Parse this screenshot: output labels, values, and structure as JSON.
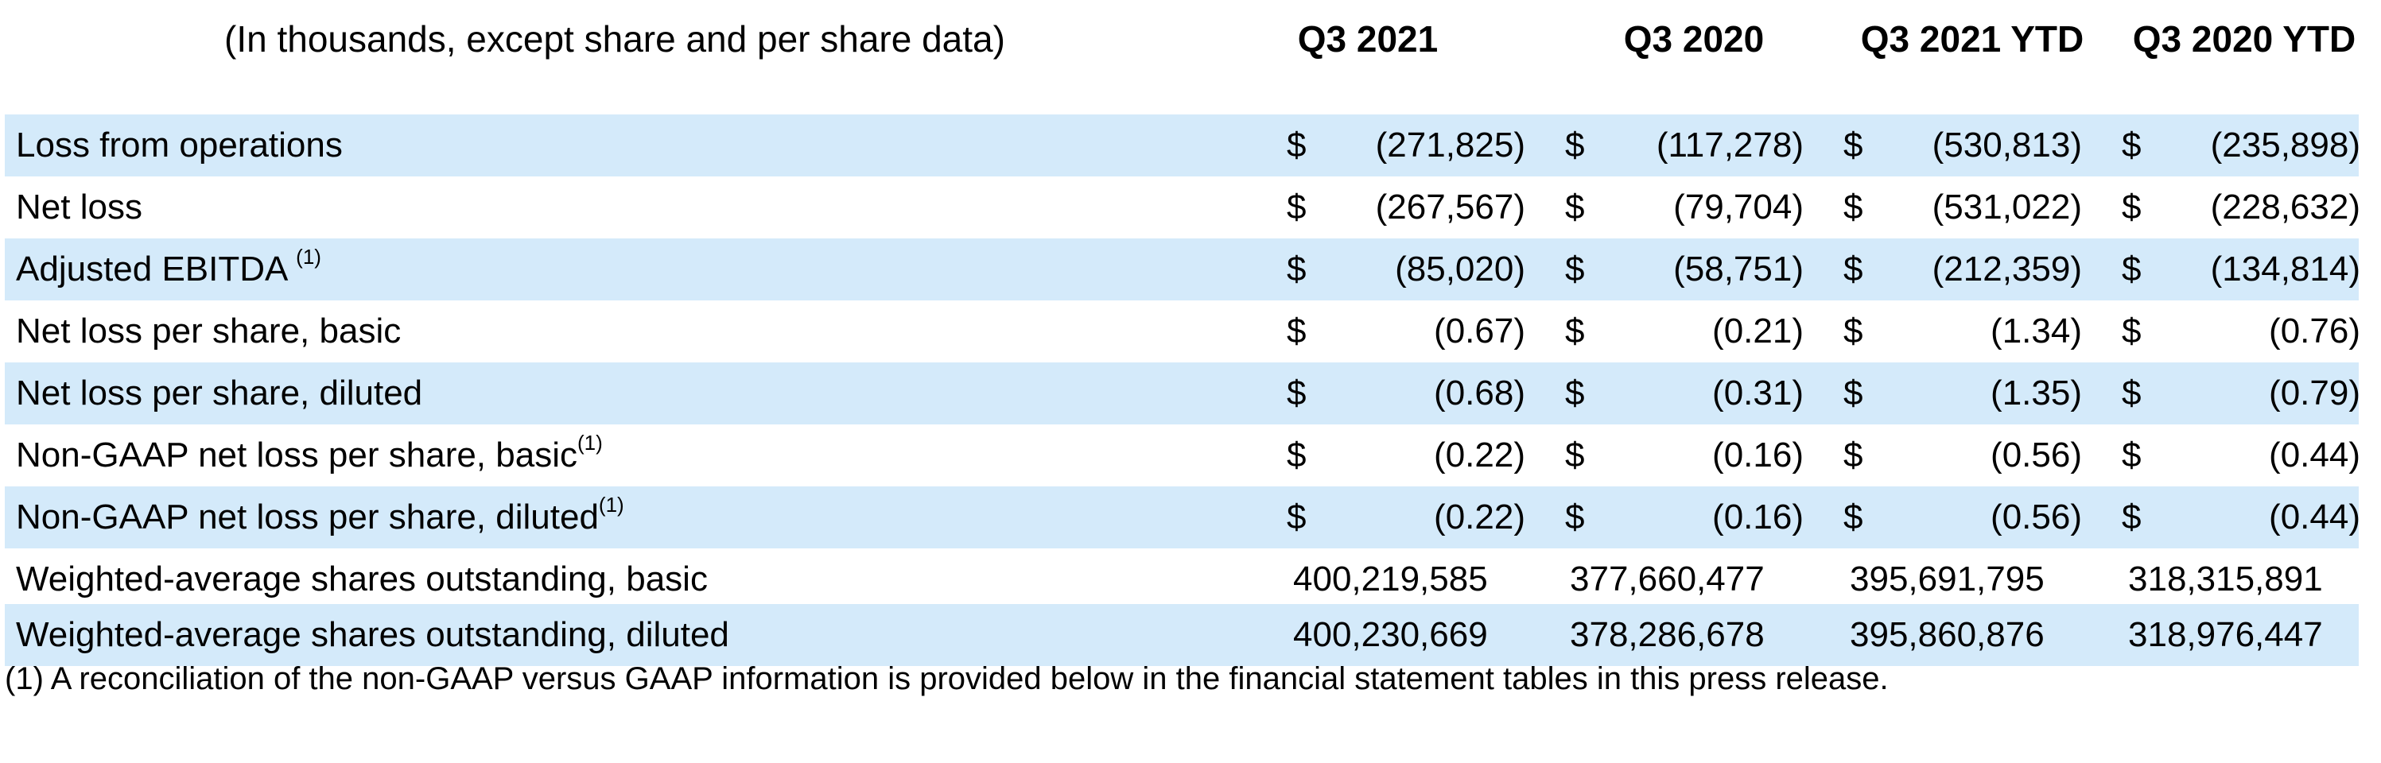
{
  "header": {
    "caption": "(In thousands, except share and per share data)",
    "columns": [
      "Q3 2021",
      "Q3 2020",
      "Q3 2021 YTD",
      "Q3 2020 YTD"
    ]
  },
  "colors": {
    "row_shading": "#d4eafa",
    "background": "#ffffff",
    "text": "#000000"
  },
  "currency_symbol": "$",
  "rows": [
    {
      "label": "Loss from operations",
      "note": "",
      "values": [
        "(271,825)",
        "(117,278)",
        "(530,813)",
        "(235,898)"
      ]
    },
    {
      "label": "Net loss",
      "note": "",
      "values": [
        "(267,567)",
        "(79,704)",
        "(531,022)",
        "(228,632)"
      ]
    },
    {
      "label": "Adjusted EBITDA ",
      "note": "(1)",
      "values": [
        "(85,020)",
        "(58,751)",
        "(212,359)",
        "(134,814)"
      ]
    },
    {
      "label": "Net loss per share, basic",
      "note": "",
      "values": [
        "(0.67)",
        "(0.21)",
        "(1.34)",
        "(0.76)"
      ]
    },
    {
      "label": "Net loss per share, diluted",
      "note": "",
      "values": [
        "(0.68)",
        "(0.31)",
        "(1.35)",
        "(0.79)"
      ]
    },
    {
      "label": "Non-GAAP net loss per share, basic",
      "note": "(1)",
      "values": [
        "(0.22)",
        "(0.16)",
        "(0.56)",
        "(0.44)"
      ]
    },
    {
      "label": "Non-GAAP net loss per share, diluted",
      "note": "(1)",
      "values": [
        "(0.22)",
        "(0.16)",
        "(0.56)",
        "(0.44)"
      ]
    },
    {
      "label": "Weighted-average shares outstanding, basic",
      "note": "",
      "values": [
        "400,219,585",
        "377,660,477",
        "395,691,795",
        "318,315,891"
      ]
    },
    {
      "label": "Weighted-average shares outstanding, diluted",
      "note": "",
      "values": [
        "400,230,669",
        "378,286,678",
        "395,860,876",
        "318,976,447"
      ]
    }
  ],
  "footnote": "(1) A reconciliation of the non-GAAP versus GAAP information is provided below in the financial statement tables in this press release."
}
